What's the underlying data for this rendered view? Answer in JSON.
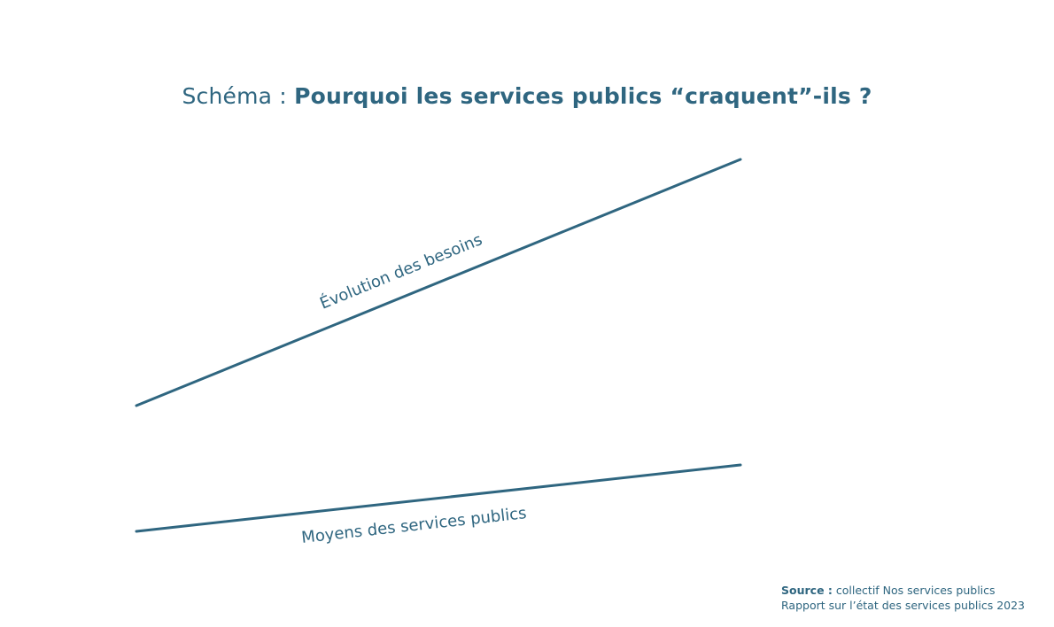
{
  "title": {
    "prefix": "Schéma :",
    "main": "Pourquoi les services publics “craquent”-ils ?"
  },
  "lines": {
    "needs_label": "Évolution des besoins",
    "means_label": "Moyens des services publics"
  },
  "source": {
    "label": "Source :",
    "line1": "collectif Nos services publics",
    "line2": "Rapport sur l’état des services publics 2023"
  },
  "colors": {
    "primary": "#2f6680",
    "background": "#ffffff"
  }
}
